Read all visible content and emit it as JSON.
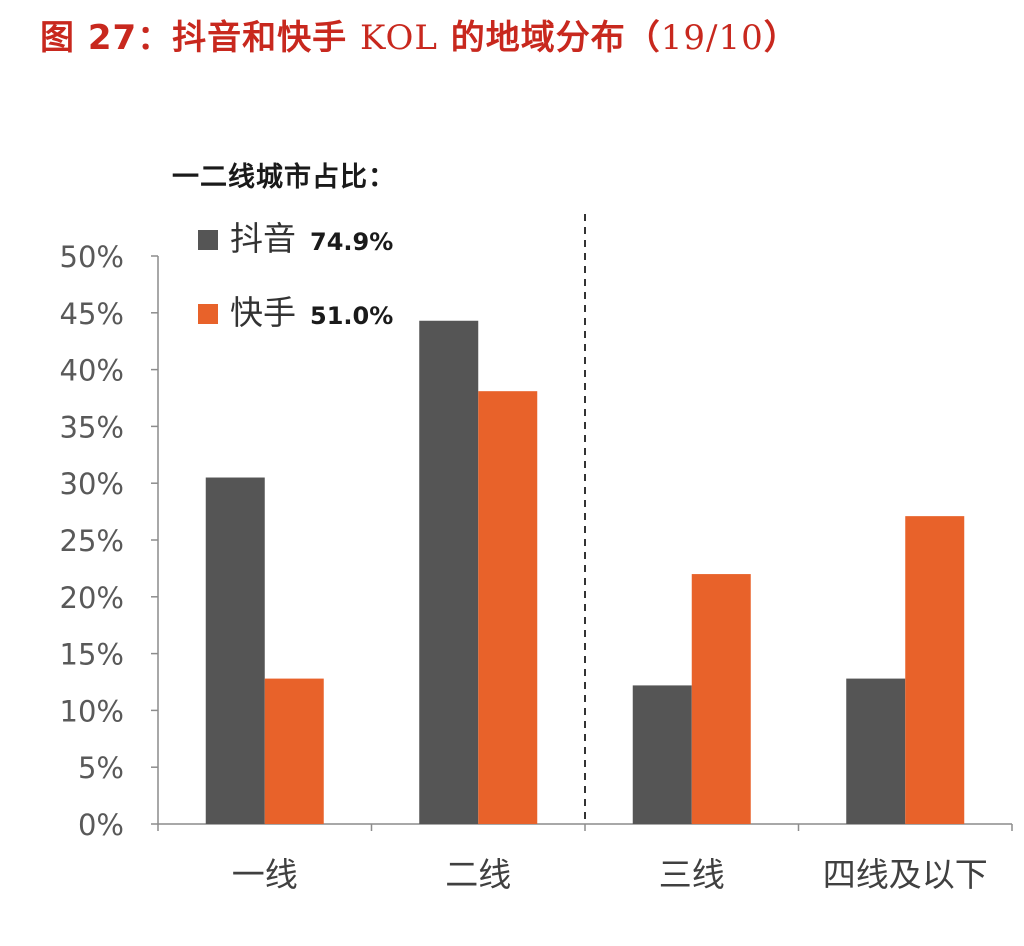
{
  "figure": {
    "label": "图 27：",
    "title_cn": "抖音和快手",
    "title_latin": "KOL",
    "title_cn2": "的地域分布（",
    "title_date": "19/10",
    "title_close": "）"
  },
  "subtitle": "一二线城市占比：",
  "chart_data": {
    "type": "bar",
    "categories": [
      "一线",
      "二线",
      "三线",
      "四线及以下"
    ],
    "series": [
      {
        "name": "抖音",
        "legend_value": "74.9%",
        "color": "#555555",
        "values": [
          30.5,
          44.3,
          12.2,
          12.8
        ]
      },
      {
        "name": "快手",
        "legend_value": "51.0%",
        "color": "#e8622a",
        "values": [
          12.8,
          38.1,
          22.0,
          27.1
        ]
      }
    ],
    "ylim": [
      0,
      50
    ],
    "yticks": [
      "0%",
      "5%",
      "10%",
      "15%",
      "20%",
      "25%",
      "30%",
      "35%",
      "40%",
      "45%",
      "50%"
    ],
    "legend": "top-left",
    "divider_after_category": 2,
    "grid": false
  }
}
